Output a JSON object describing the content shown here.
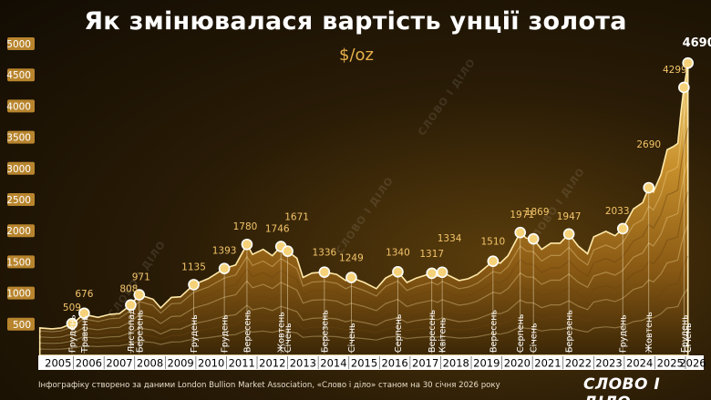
{
  "title": "Як змінювалася вартість унції золота",
  "unit": "$/oz",
  "footer": "Інфографіку створено за даними London Bullion Market Association, «Слово і діло» станом на 30 січня 2026 року",
  "brand": "СЛОВО І ДІЛО",
  "watermark": "СЛОВО І ДІЛО",
  "colors": {
    "accent": "#e8b04a",
    "gold": "#f0c060",
    "axis_text": "#ffffff",
    "tick_box": "#b8852e"
  },
  "chart_data": {
    "type": "area",
    "ylim": [
      0,
      5000
    ],
    "yticks": [
      500,
      1000,
      1500,
      2000,
      2500,
      3000,
      3500,
      4000,
      4500,
      5000
    ],
    "xlim": [
      2004.85,
      2026.0
    ],
    "year_labels": [
      "2005",
      "2006",
      "2007",
      "2008",
      "2009",
      "2010",
      "2011",
      "2012",
      "2013",
      "2014",
      "2015",
      "2016",
      "2017",
      "2018",
      "2019",
      "2020",
      "2021",
      "2022",
      "2023",
      "2024",
      "2025",
      "2026"
    ],
    "price_series": [
      [
        2004.9,
        440
      ],
      [
        2005.3,
        425
      ],
      [
        2005.6,
        440
      ],
      [
        2005.95,
        509
      ],
      [
        2006.1,
        560
      ],
      [
        2006.35,
        676
      ],
      [
        2006.5,
        640
      ],
      [
        2006.8,
        610
      ],
      [
        2007.2,
        660
      ],
      [
        2007.5,
        670
      ],
      [
        2007.87,
        808
      ],
      [
        2008.15,
        971
      ],
      [
        2008.6,
        900
      ],
      [
        2008.85,
        760
      ],
      [
        2009.2,
        930
      ],
      [
        2009.5,
        940
      ],
      [
        2009.93,
        1135
      ],
      [
        2010.4,
        1230
      ],
      [
        2010.93,
        1393
      ],
      [
        2011.3,
        1450
      ],
      [
        2011.67,
        1780
      ],
      [
        2011.85,
        1620
      ],
      [
        2012.2,
        1700
      ],
      [
        2012.5,
        1600
      ],
      [
        2012.78,
        1746
      ],
      [
        2013.0,
        1671
      ],
      [
        2013.3,
        1560
      ],
      [
        2013.5,
        1250
      ],
      [
        2013.8,
        1320
      ],
      [
        2014.2,
        1336
      ],
      [
        2014.6,
        1300
      ],
      [
        2014.9,
        1200
      ],
      [
        2015.08,
        1249
      ],
      [
        2015.5,
        1170
      ],
      [
        2015.9,
        1070
      ],
      [
        2016.2,
        1240
      ],
      [
        2016.6,
        1340
      ],
      [
        2016.9,
        1170
      ],
      [
        2017.2,
        1240
      ],
      [
        2017.71,
        1317
      ],
      [
        2017.9,
        1270
      ],
      [
        2018.05,
        1334
      ],
      [
        2018.6,
        1200
      ],
      [
        2018.9,
        1230
      ],
      [
        2019.2,
        1300
      ],
      [
        2019.71,
        1510
      ],
      [
        2019.95,
        1480
      ],
      [
        2020.2,
        1600
      ],
      [
        2020.6,
        1971
      ],
      [
        2020.8,
        1880
      ],
      [
        2021.03,
        1869
      ],
      [
        2021.3,
        1700
      ],
      [
        2021.6,
        1800
      ],
      [
        2021.9,
        1800
      ],
      [
        2022.19,
        1947
      ],
      [
        2022.5,
        1750
      ],
      [
        2022.8,
        1630
      ],
      [
        2023.0,
        1900
      ],
      [
        2023.4,
        1990
      ],
      [
        2023.7,
        1920
      ],
      [
        2023.95,
        2033
      ],
      [
        2024.3,
        2350
      ],
      [
        2024.6,
        2450
      ],
      [
        2024.8,
        2690
      ],
      [
        2024.95,
        2620
      ],
      [
        2025.2,
        2900
      ],
      [
        2025.4,
        3300
      ],
      [
        2025.6,
        3350
      ],
      [
        2025.75,
        3400
      ],
      [
        2025.85,
        3900
      ],
      [
        2025.95,
        4299
      ],
      [
        2026.02,
        4500
      ],
      [
        2026.08,
        4690
      ]
    ],
    "annotations": [
      {
        "x": 2005.95,
        "value": 509,
        "label": "509",
        "month": "Грудень"
      },
      {
        "x": 2006.35,
        "value": 676,
        "label": "676",
        "month": "Травень"
      },
      {
        "x": 2007.87,
        "value": 808,
        "label": "808",
        "month": "Листопад"
      },
      {
        "x": 2008.15,
        "value": 971,
        "label": "971",
        "month": "Березень"
      },
      {
        "x": 2009.93,
        "value": 1135,
        "label": "1135",
        "month": "Грудень"
      },
      {
        "x": 2010.93,
        "value": 1393,
        "label": "1393",
        "month": "Грудень"
      },
      {
        "x": 2011.67,
        "value": 1780,
        "label": "1780",
        "month": "Вересень"
      },
      {
        "x": 2012.78,
        "value": 1746,
        "label": "1746",
        "month": "Жовтень"
      },
      {
        "x": 2013.0,
        "value": 1671,
        "label": "1671",
        "month": "Січень"
      },
      {
        "x": 2014.2,
        "value": 1336,
        "label": "1336",
        "month": "Березень"
      },
      {
        "x": 2015.08,
        "value": 1249,
        "label": "1249",
        "month": "Січень"
      },
      {
        "x": 2016.6,
        "value": 1340,
        "label": "1340",
        "month": "Серпень"
      },
      {
        "x": 2017.71,
        "value": 1317,
        "label": "1317",
        "month": "Вересень"
      },
      {
        "x": 2018.05,
        "value": 1334,
        "label": "1334",
        "month": "Квітень"
      },
      {
        "x": 2019.71,
        "value": 1510,
        "label": "1510",
        "month": "Вересень"
      },
      {
        "x": 2020.6,
        "value": 1971,
        "label": "1971",
        "month": "Серпень"
      },
      {
        "x": 2021.03,
        "value": 1869,
        "label": "1869",
        "month": "Січень"
      },
      {
        "x": 2022.19,
        "value": 1947,
        "label": "1947",
        "month": "Березень"
      },
      {
        "x": 2023.95,
        "value": 2033,
        "label": "2033",
        "month": "Грудень"
      },
      {
        "x": 2024.8,
        "value": 2690,
        "label": "2690",
        "month": "Жовтень"
      },
      {
        "x": 2025.95,
        "value": 4299,
        "label": "4299",
        "month": "Грудень"
      },
      {
        "x": 2026.08,
        "value": 4690,
        "label": "4690",
        "month": "Січень"
      }
    ]
  }
}
